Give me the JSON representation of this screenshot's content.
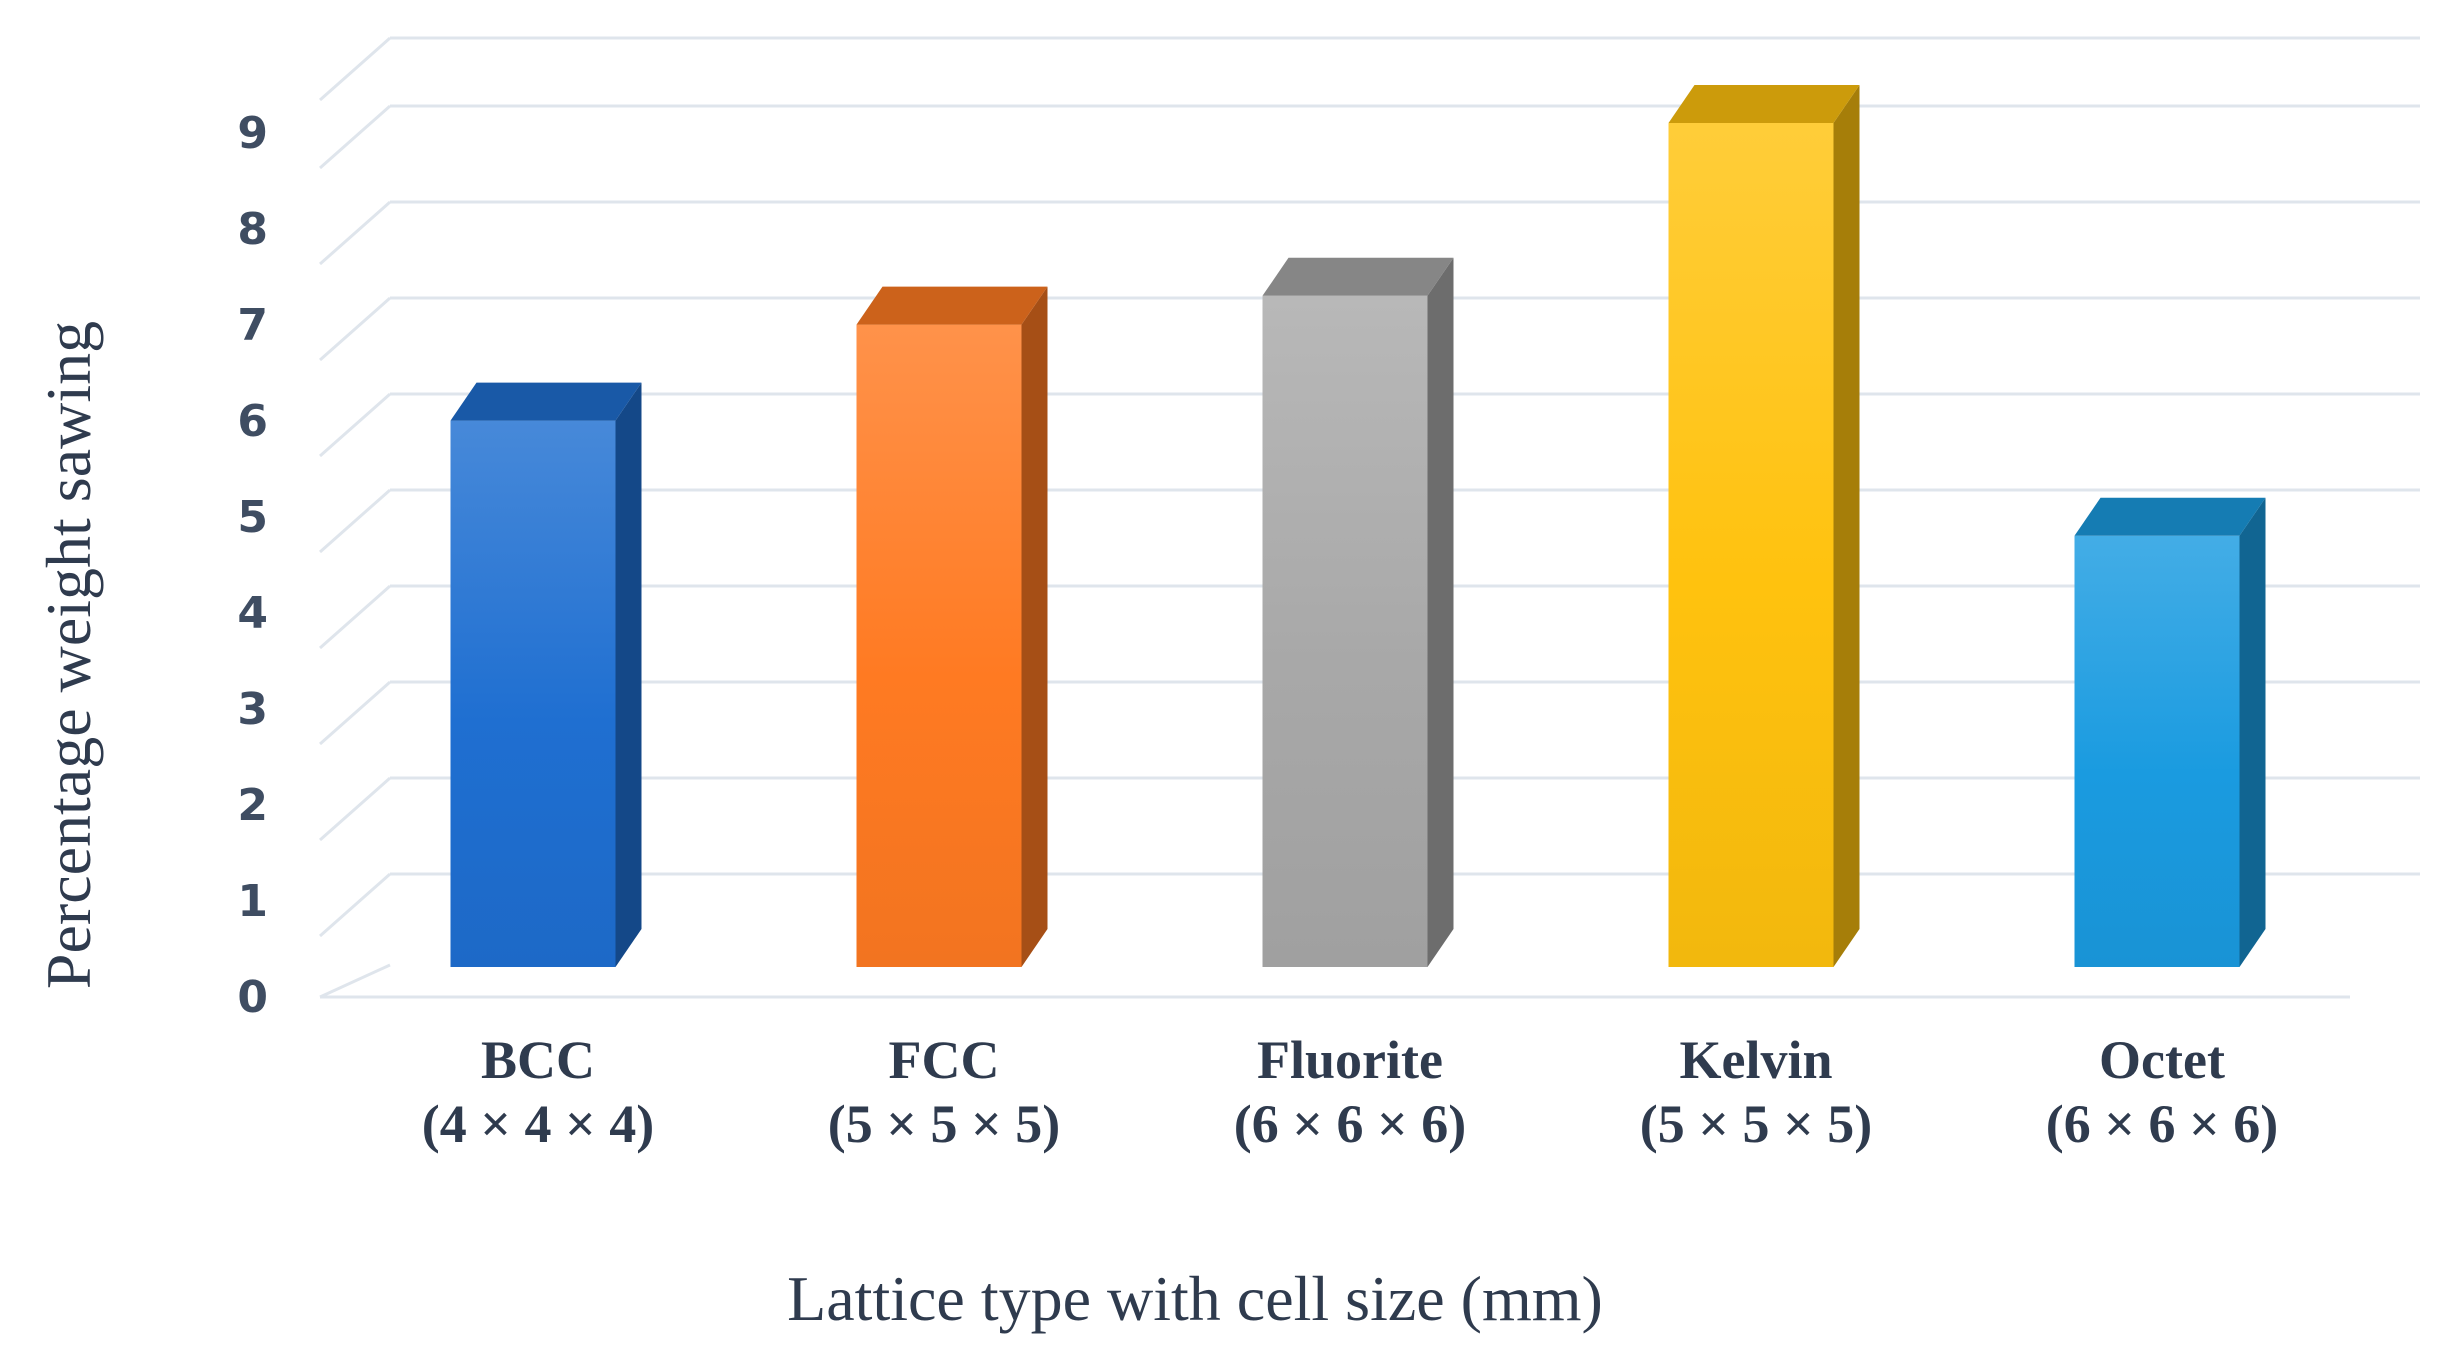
{
  "chart_data": {
    "type": "bar",
    "title": "",
    "xlabel": "Lattice type with cell size (mm)",
    "ylabel": "Percentage weight sawing",
    "ylim": [
      0,
      9
    ],
    "y_ticks": [
      "0",
      "1",
      "2",
      "3",
      "4",
      "5",
      "6",
      "7",
      "8",
      "9"
    ],
    "grid": true,
    "legend": "none",
    "style": "3d-column",
    "categories": [
      {
        "name": "BCC",
        "size": "(4 × 4 × 4)"
      },
      {
        "name": "FCC",
        "size": "(5 × 5 × 5)"
      },
      {
        "name": "Fluorite",
        "size": "(6 × 6 × 6)"
      },
      {
        "name": "Kelvin",
        "size": "(5 × 5 × 5)"
      },
      {
        "name": "Octet",
        "size": "(6 × 6 × 6)"
      }
    ],
    "values": [
      5.9,
      6.9,
      7.2,
      9.0,
      4.7
    ],
    "colors": [
      "#1f6fd1",
      "#ff7a22",
      "#a8a8a8",
      "#ffc20e",
      "#1a9be0"
    ]
  }
}
